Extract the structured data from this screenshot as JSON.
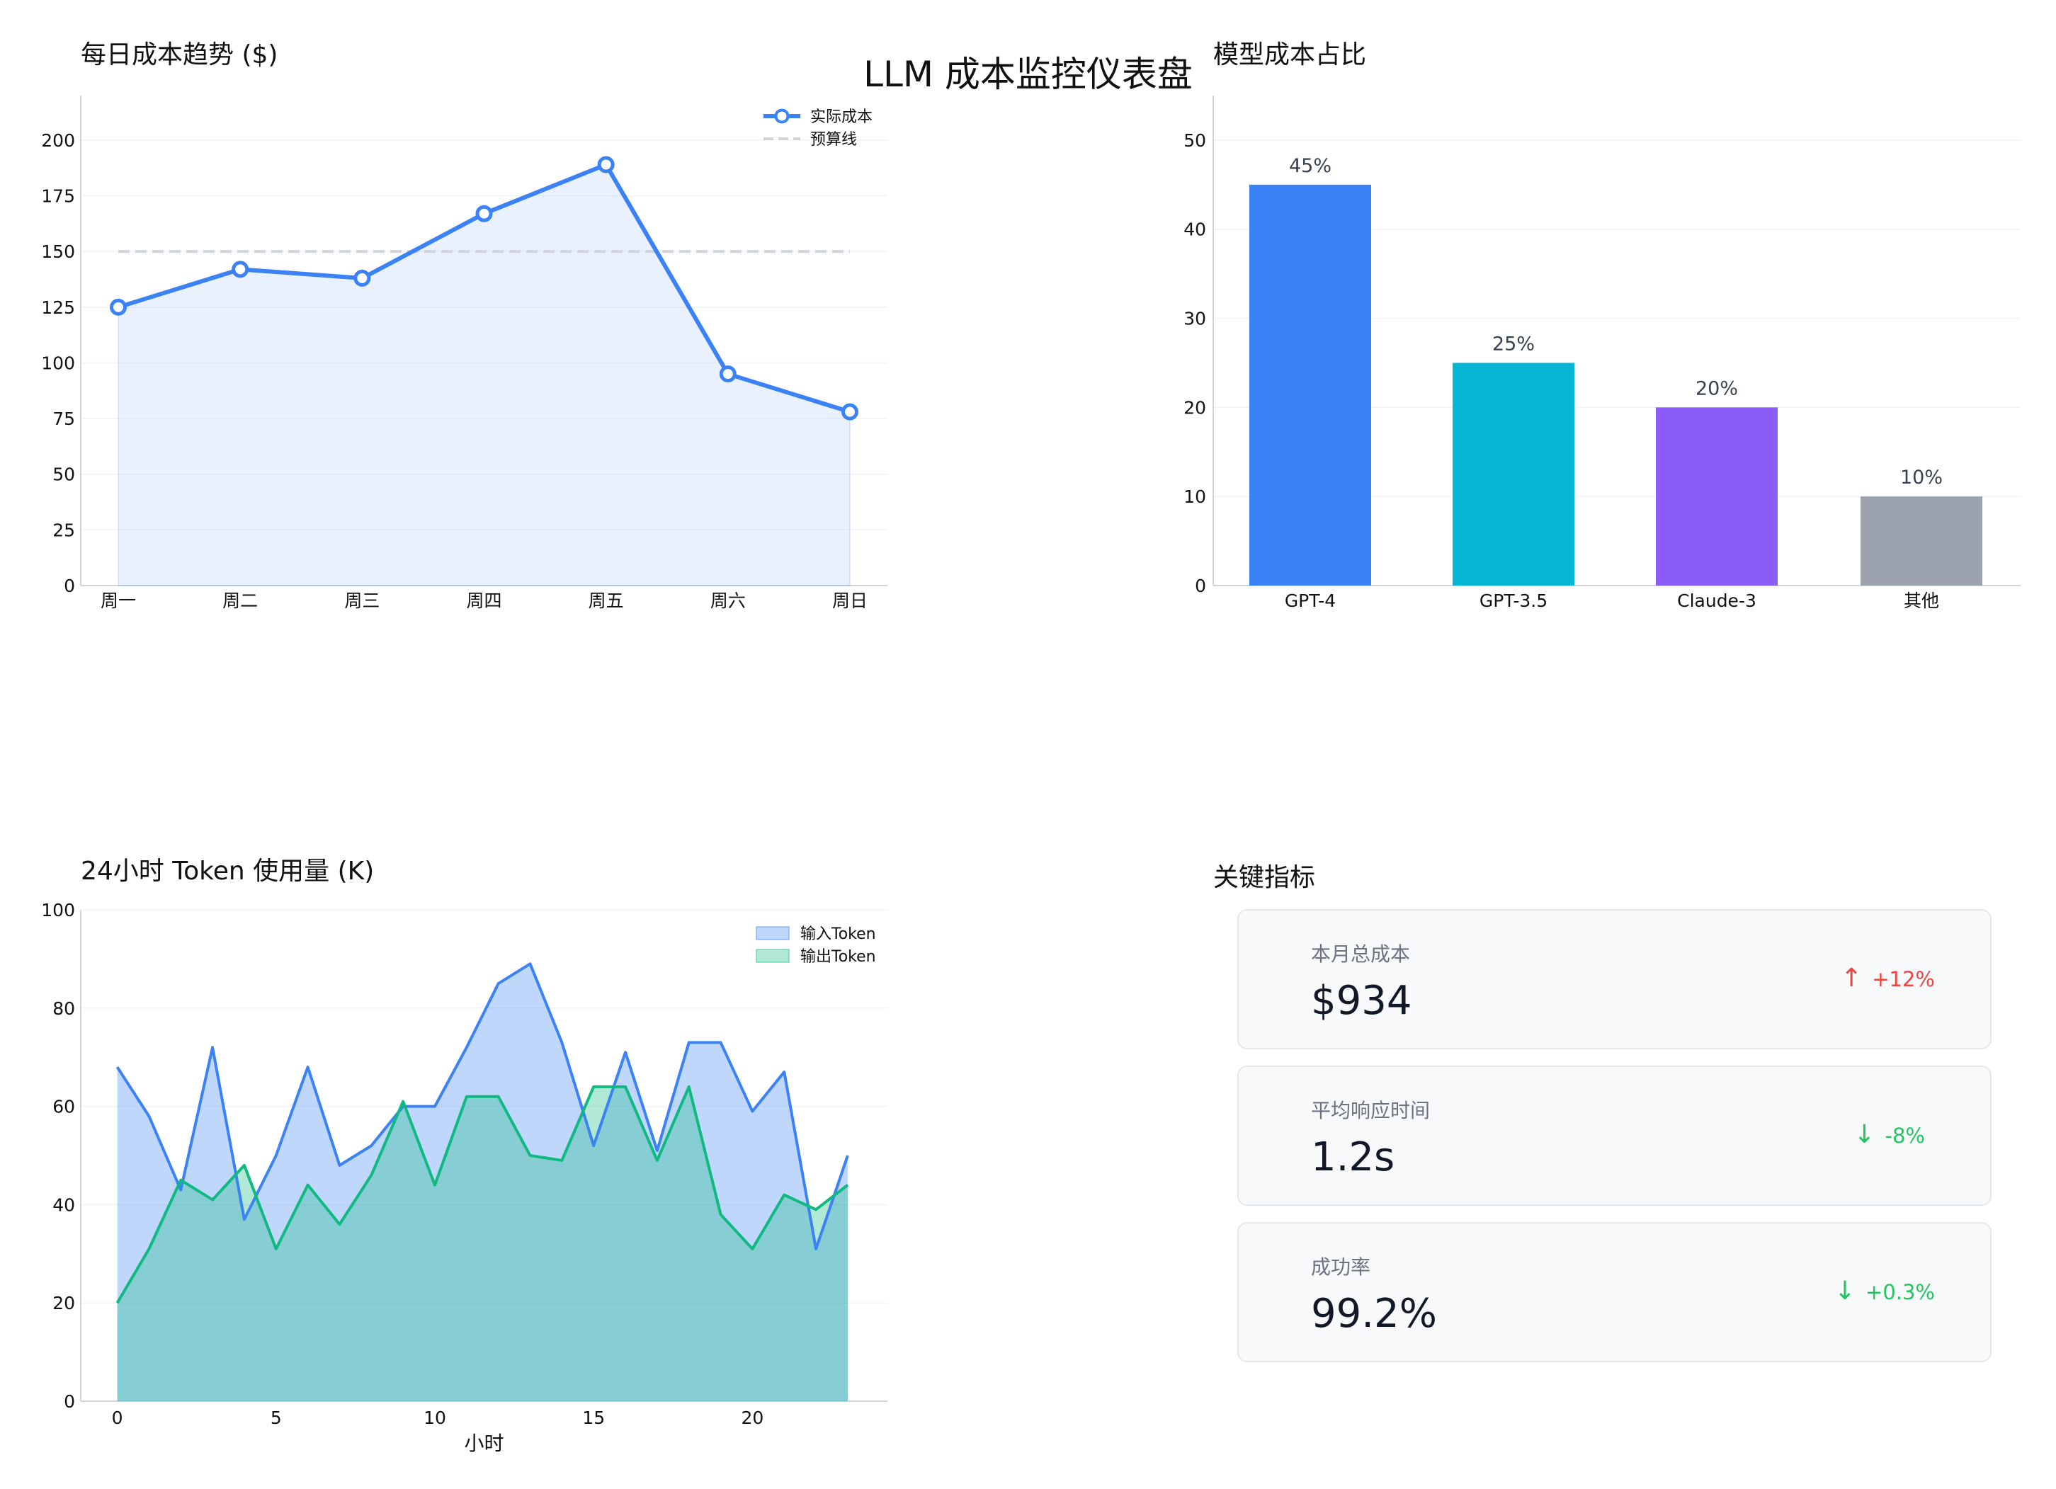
{
  "title": "LLM 成本监控仪表盘",
  "colors": {
    "blue": "#3b82f6",
    "cyan": "#06b6d4",
    "purple": "#8b5cf6",
    "gray": "#9ca3af",
    "green": "#10b981",
    "red": "#ef4444",
    "kpi_green": "#22c55e"
  },
  "chart_data": [
    {
      "type": "line",
      "title": "每日成本趋势 ($)",
      "categories": [
        "周一",
        "周二",
        "周三",
        "周四",
        "周五",
        "周六",
        "周日"
      ],
      "series": [
        {
          "name": "实际成本",
          "values": [
            125,
            142,
            138,
            167,
            189,
            95,
            78
          ]
        },
        {
          "name": "预算线",
          "values": [
            150,
            150,
            150,
            150,
            150,
            150,
            150
          ]
        }
      ],
      "ylim": [
        0,
        220
      ],
      "yticks": [
        0,
        25,
        50,
        75,
        100,
        125,
        150,
        175,
        200
      ],
      "legend": "top-right",
      "area_fill": true
    },
    {
      "type": "bar",
      "title": "模型成本占比",
      "categories": [
        "GPT-4",
        "GPT-3.5",
        "Claude-3",
        "其他"
      ],
      "values": [
        45,
        25,
        20,
        10
      ],
      "data_labels": [
        "45%",
        "25%",
        "20%",
        "10%"
      ],
      "ylim": [
        0,
        55
      ],
      "yticks": [
        0,
        10,
        20,
        30,
        40,
        50
      ]
    },
    {
      "type": "area",
      "title": "24小时 Token 使用量 (K)",
      "xlabel": "小时",
      "x": [
        0,
        1,
        2,
        3,
        4,
        5,
        6,
        7,
        8,
        9,
        10,
        11,
        12,
        13,
        14,
        15,
        16,
        17,
        18,
        19,
        20,
        21,
        22,
        23
      ],
      "series": [
        {
          "name": "输入Token",
          "values": [
            68,
            58,
            43,
            72,
            37,
            50,
            68,
            48,
            52,
            60,
            60,
            72,
            85,
            89,
            73,
            52,
            71,
            51,
            73,
            73,
            59,
            67,
            31,
            50
          ]
        },
        {
          "name": "输出Token",
          "values": [
            20,
            31,
            45,
            41,
            48,
            31,
            44,
            36,
            46,
            61,
            44,
            62,
            62,
            50,
            49,
            64,
            64,
            49,
            64,
            38,
            31,
            42,
            39,
            44
          ]
        }
      ],
      "xlim": [
        -1.15,
        24.25
      ],
      "xticks": [
        0,
        5,
        10,
        15,
        20
      ],
      "ylim": [
        0,
        100
      ],
      "yticks": [
        0,
        20,
        40,
        60,
        80,
        100
      ],
      "legend": "top-right"
    }
  ],
  "kpi": {
    "title": "关键指标",
    "cards": [
      {
        "label": "本月总成本",
        "value": "$934",
        "arrow": "↑",
        "change": "+12%",
        "color": "#ef4444"
      },
      {
        "label": "平均响应时间",
        "value": "1.2s",
        "arrow": "↓",
        "change": "-8%",
        "color": "#22c55e"
      },
      {
        "label": "成功率",
        "value": "99.2%",
        "arrow": "↓",
        "change": "+0.3%",
        "color": "#22c55e"
      }
    ]
  }
}
